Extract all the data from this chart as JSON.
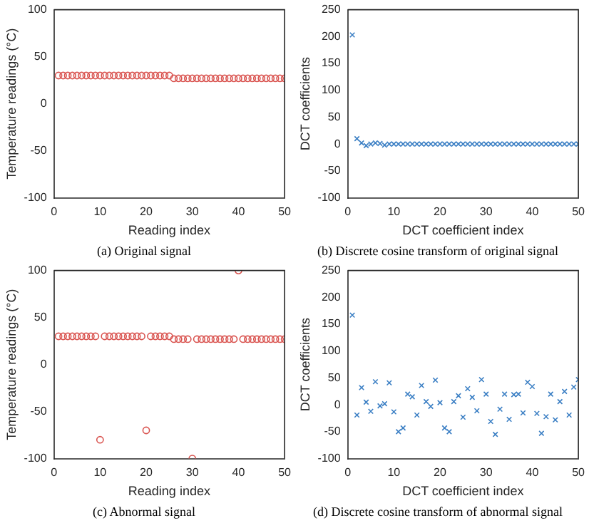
{
  "chart_data": [
    {
      "type": "scatter",
      "title": "(a) Original signal",
      "xlabel": "Reading index",
      "ylabel": "Temperature readings (°C)",
      "x": [
        1,
        2,
        3,
        4,
        5,
        6,
        7,
        8,
        9,
        10,
        11,
        12,
        13,
        14,
        15,
        16,
        17,
        18,
        19,
        20,
        21,
        22,
        23,
        24,
        25,
        26,
        27,
        28,
        29,
        30,
        31,
        32,
        33,
        34,
        35,
        36,
        37,
        38,
        39,
        40,
        41,
        42,
        43,
        44,
        45,
        46,
        47,
        48,
        49,
        50
      ],
      "series": [
        {
          "color": "#d9534f",
          "values": [
            30,
            30,
            30,
            30,
            30,
            30,
            30,
            30,
            30,
            30,
            30,
            30,
            30,
            30,
            30,
            30,
            30,
            30,
            30,
            30,
            30,
            30,
            30,
            30,
            30,
            27,
            27,
            27,
            27,
            27,
            27,
            27,
            27,
            27,
            27,
            27,
            27,
            27,
            27,
            27,
            27,
            27,
            27,
            27,
            27,
            27,
            27,
            27,
            27,
            27
          ]
        }
      ],
      "marker": "circle",
      "xlim": [
        0,
        50
      ],
      "xticks": [
        0,
        10,
        20,
        30,
        40,
        50
      ],
      "ylim": [
        -100,
        100
      ],
      "yticks": [
        -100,
        -50,
        0,
        50,
        100
      ],
      "grid": false,
      "legend": false
    },
    {
      "type": "scatter",
      "title": "(b) Discrete cosine transform of original signal",
      "xlabel": "DCT coefficient index",
      "ylabel": "DCT coefficients",
      "x": [
        1,
        2,
        3,
        4,
        5,
        6,
        7,
        8,
        9,
        10,
        11,
        12,
        13,
        14,
        15,
        16,
        17,
        18,
        19,
        20,
        21,
        22,
        23,
        24,
        25,
        26,
        27,
        28,
        29,
        30,
        31,
        32,
        33,
        34,
        35,
        36,
        37,
        38,
        39,
        40,
        41,
        42,
        43,
        44,
        45,
        46,
        47,
        48,
        49,
        50
      ],
      "series": [
        {
          "color": "#3b7fc4",
          "values": [
            203,
            10,
            2,
            -3,
            0,
            2,
            1,
            -2,
            0,
            0,
            0,
            0,
            0,
            0,
            0,
            0,
            0,
            0,
            0,
            0,
            0,
            0,
            0,
            0,
            0,
            0,
            0,
            0,
            0,
            0,
            0,
            0,
            0,
            0,
            0,
            0,
            0,
            0,
            0,
            0,
            0,
            0,
            0,
            0,
            0,
            0,
            0,
            0,
            0,
            0
          ]
        }
      ],
      "marker": "cross",
      "xlim": [
        0,
        50
      ],
      "xticks": [
        0,
        10,
        20,
        30,
        40,
        50
      ],
      "ylim": [
        -100,
        250
      ],
      "yticks": [
        -100,
        -50,
        0,
        50,
        100,
        150,
        200,
        250
      ],
      "grid": false,
      "legend": false
    },
    {
      "type": "scatter",
      "title": "(c) Abnormal signal",
      "xlabel": "Reading index",
      "ylabel": "Temperature readings (°C)",
      "x": [
        1,
        2,
        3,
        4,
        5,
        6,
        7,
        8,
        9,
        10,
        11,
        12,
        13,
        14,
        15,
        16,
        17,
        18,
        19,
        20,
        21,
        22,
        23,
        24,
        25,
        26,
        27,
        28,
        29,
        30,
        31,
        32,
        33,
        34,
        35,
        36,
        37,
        38,
        39,
        40,
        41,
        42,
        43,
        44,
        45,
        46,
        47,
        48,
        49,
        50
      ],
      "series": [
        {
          "color": "#d9534f",
          "values": [
            30,
            30,
            30,
            30,
            30,
            30,
            30,
            30,
            30,
            -80,
            30,
            30,
            30,
            30,
            30,
            30,
            30,
            30,
            30,
            -70,
            30,
            30,
            30,
            30,
            30,
            27,
            27,
            27,
            27,
            -100,
            27,
            27,
            27,
            27,
            27,
            27,
            27,
            27,
            27,
            100,
            27,
            27,
            27,
            27,
            27,
            27,
            27,
            27,
            27,
            27
          ]
        }
      ],
      "marker": "circle",
      "xlim": [
        0,
        50
      ],
      "xticks": [
        0,
        10,
        20,
        30,
        40,
        50
      ],
      "ylim": [
        -100,
        100
      ],
      "yticks": [
        -100,
        -50,
        0,
        50,
        100
      ],
      "grid": false,
      "legend": false
    },
    {
      "type": "scatter",
      "title": "(d) Discrete cosine transform of abnormal signal",
      "xlabel": "DCT coefficient index",
      "ylabel": "DCT coefficients",
      "x": [
        1,
        2,
        3,
        4,
        5,
        6,
        7,
        8,
        9,
        10,
        11,
        12,
        13,
        14,
        15,
        16,
        17,
        18,
        19,
        20,
        21,
        22,
        23,
        24,
        25,
        26,
        27,
        28,
        29,
        30,
        31,
        32,
        33,
        34,
        35,
        36,
        37,
        38,
        39,
        40,
        41,
        42,
        43,
        44,
        45,
        46,
        47,
        48,
        49,
        50
      ],
      "series": [
        {
          "color": "#3b7fc4",
          "values": [
            167,
            -19,
            32,
            5,
            -12,
            43,
            -2,
            2,
            41,
            -13,
            -50,
            -43,
            20,
            15,
            -19,
            36,
            6,
            -3,
            46,
            4,
            -43,
            -50,
            6,
            17,
            -23,
            30,
            14,
            -11,
            47,
            20,
            -31,
            -55,
            -8,
            20,
            -27,
            19,
            20,
            -15,
            42,
            34,
            -16,
            -53,
            -22,
            20,
            -28,
            6,
            25,
            -19,
            33,
            47
          ]
        }
      ],
      "marker": "cross",
      "xlim": [
        0,
        50
      ],
      "xticks": [
        0,
        10,
        20,
        30,
        40,
        50
      ],
      "ylim": [
        -100,
        250
      ],
      "yticks": [
        -100,
        -50,
        0,
        50,
        100,
        150,
        200,
        250
      ],
      "grid": false,
      "legend": false
    }
  ]
}
